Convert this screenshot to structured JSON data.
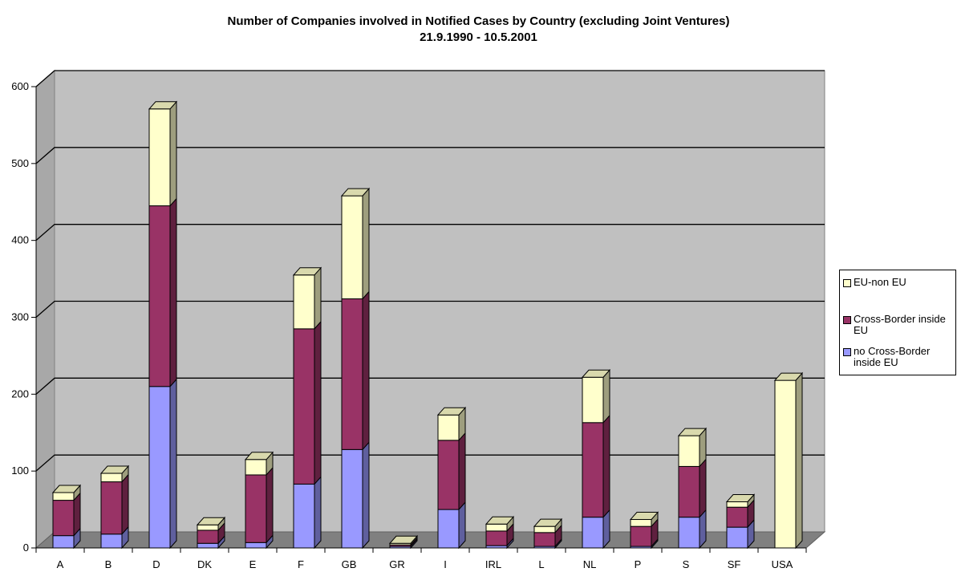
{
  "chart_data": {
    "type": "bar",
    "stacked": true,
    "three_d": true,
    "title": "Number of Companies involved in Notified Cases by Country (excluding Joint Ventures)",
    "subtitle": "21.9.1990 - 10.5.2001",
    "xlabel": "",
    "ylabel": "",
    "ylim": [
      0,
      600
    ],
    "yticks": [
      0,
      100,
      200,
      300,
      400,
      500,
      600
    ],
    "grid": true,
    "legend_position": "right",
    "categories": [
      "A",
      "B",
      "D",
      "DK",
      "E",
      "F",
      "GB",
      "GR",
      "I",
      "IRL",
      "L",
      "NL",
      "P",
      "S",
      "SF",
      "USA"
    ],
    "series": [
      {
        "name": "no Cross-Border inside EU",
        "color": "#9999FF",
        "values": [
          16,
          18,
          210,
          6,
          7,
          83,
          128,
          2,
          50,
          3,
          2,
          40,
          2,
          40,
          27,
          0
        ]
      },
      {
        "name": "Cross-Border inside EU",
        "color": "#993366",
        "values": [
          46,
          68,
          235,
          17,
          88,
          202,
          196,
          2,
          90,
          19,
          18,
          123,
          26,
          66,
          26,
          0
        ]
      },
      {
        "name": "EU-non EU",
        "color": "#FFFFCC",
        "values": [
          10,
          11,
          126,
          7,
          20,
          70,
          134,
          2,
          33,
          9,
          8,
          59,
          9,
          40,
          7,
          218
        ]
      }
    ]
  }
}
